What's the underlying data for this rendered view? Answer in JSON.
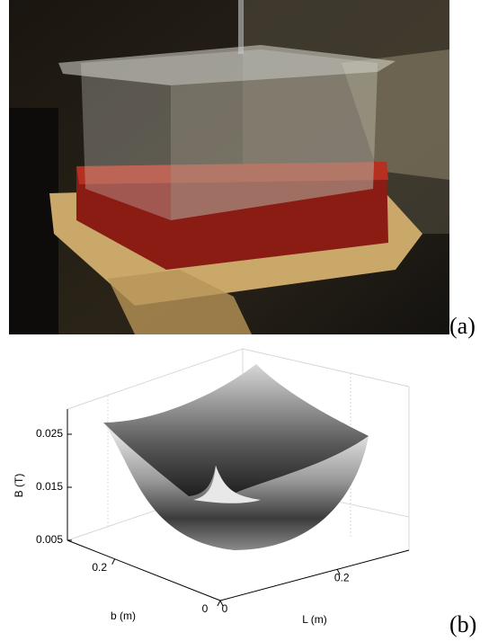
{
  "figure": {
    "panels": [
      {
        "label": "(a)"
      },
      {
        "label": "(b)",
        "plot": {
          "z_label": "B (T)",
          "zticks": [
            0.005,
            0.015,
            0.025
          ],
          "b_label": "b (m)",
          "bticks": [
            0,
            0.2
          ],
          "l_label": "L (m)",
          "lticks": [
            0,
            0.2
          ]
        }
      }
    ]
  }
}
